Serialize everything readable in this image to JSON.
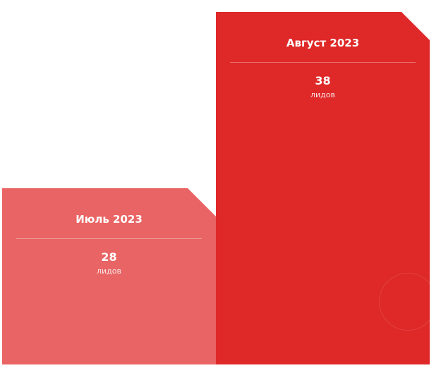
{
  "chart_data": {
    "type": "bar",
    "categories": [
      "Июль 2023",
      "Август 2023"
    ],
    "values": [
      28,
      38
    ],
    "unit_label": "лидов",
    "colors": [
      "#e96464",
      "#df2828"
    ],
    "ylim": [
      0,
      38
    ],
    "grid": false,
    "legend": "none"
  }
}
